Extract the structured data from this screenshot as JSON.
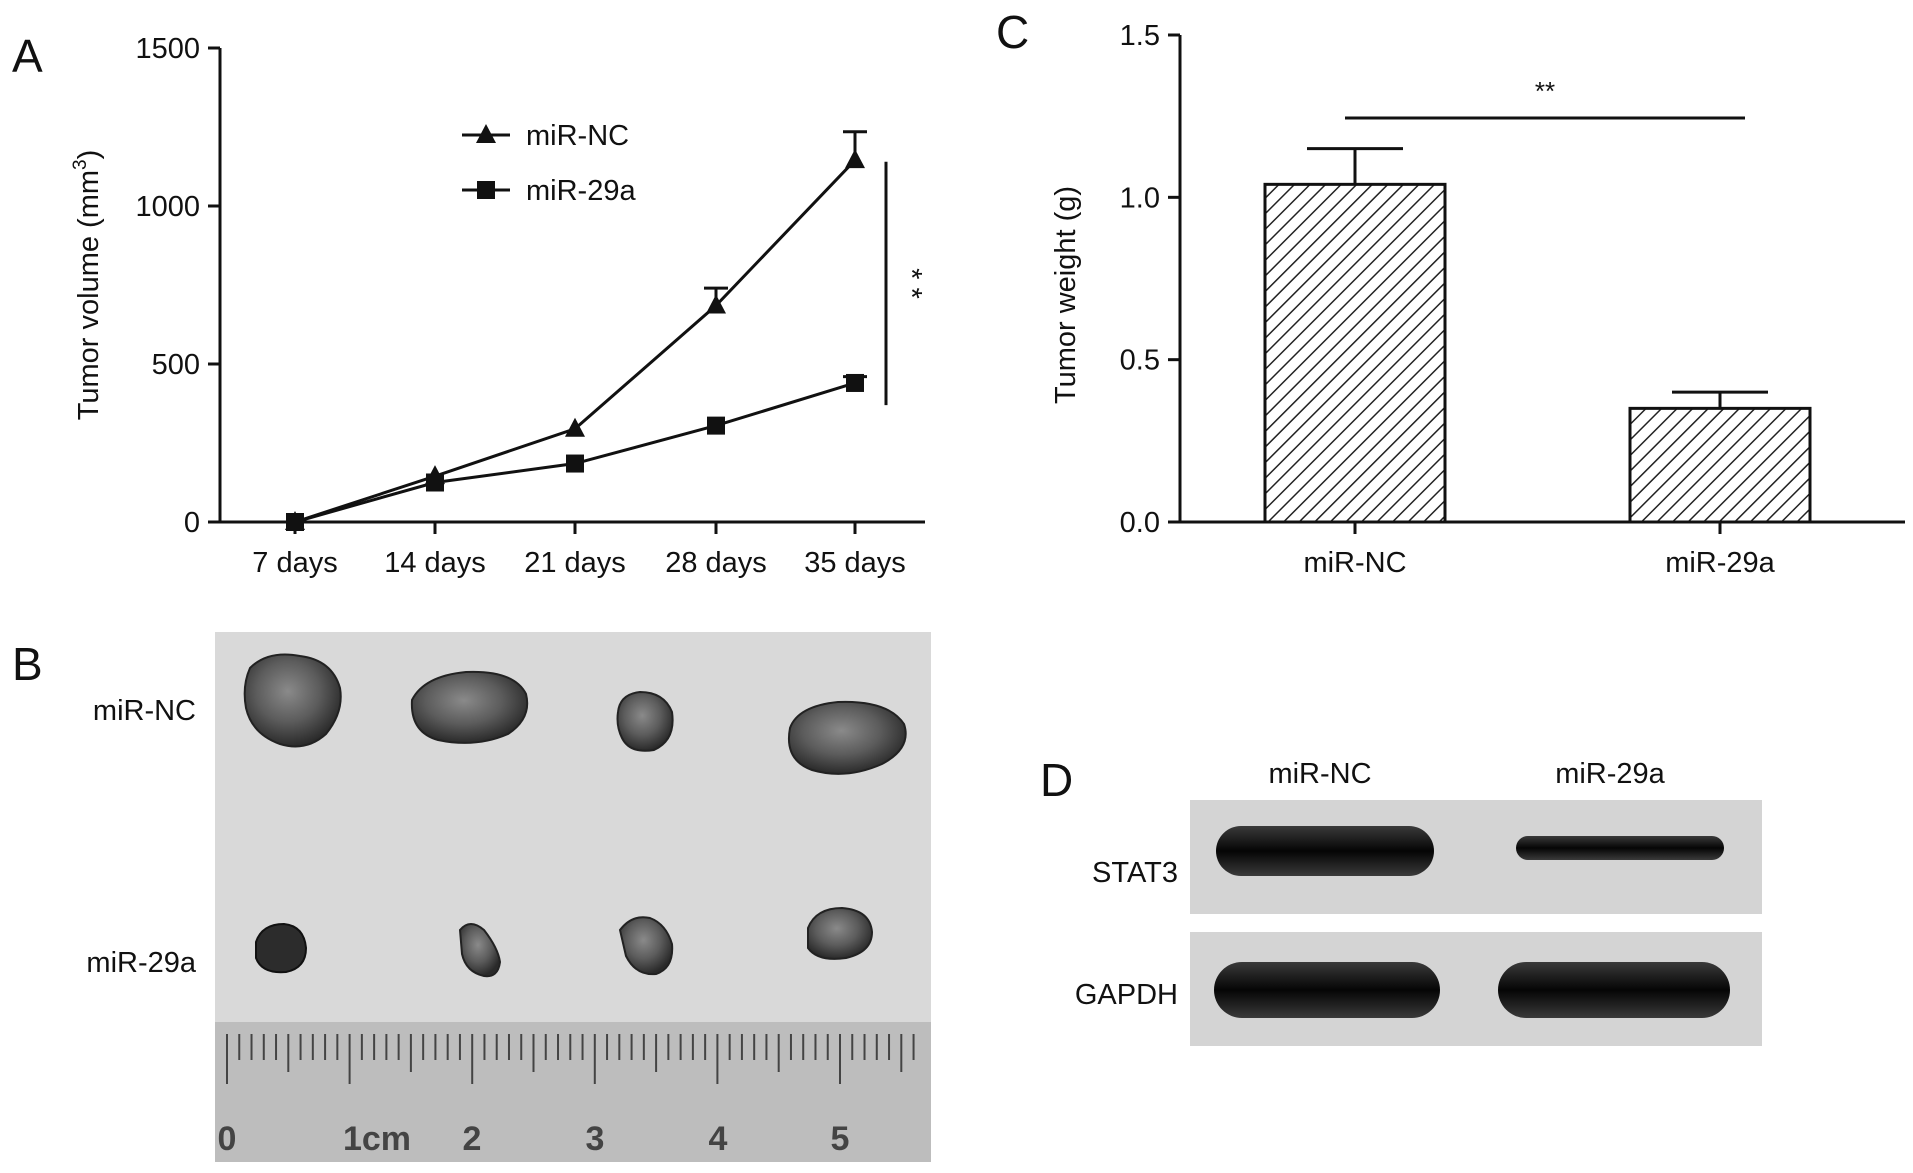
{
  "panels": {
    "A": "A",
    "B": "B",
    "C": "C",
    "D": "D"
  },
  "chart_data": [
    {
      "panel": "A",
      "type": "line",
      "ylabel_main": "Tumor volume (mm",
      "ylabel_sup": "3",
      "ylabel_end": ")",
      "xlabel": "",
      "categories": [
        "7 days",
        "14 days",
        "21 days",
        "28 days",
        "35 days"
      ],
      "ylim": [
        0,
        1500
      ],
      "yticks": [
        "0",
        "500",
        "1000",
        "1500"
      ],
      "ytick_values": [
        0,
        500,
        1000,
        1500
      ],
      "legend_position": "top-center",
      "grid": false,
      "series": [
        {
          "name": "miR-NC",
          "marker": "triangle",
          "values": [
            0,
            145,
            295,
            685,
            1145
          ],
          "errors": [
            0,
            0,
            0,
            55,
            90
          ]
        },
        {
          "name": "miR-29a",
          "marker": "square",
          "values": [
            0,
            125,
            185,
            305,
            440
          ],
          "errors": [
            0,
            0,
            0,
            0,
            20
          ]
        }
      ],
      "significance": "* *"
    },
    {
      "panel": "C",
      "type": "bar",
      "ylabel": "Tumor weight (g)",
      "xlabel": "",
      "categories": [
        "miR-NC",
        "miR-29a"
      ],
      "values": [
        1.04,
        0.35
      ],
      "errors": [
        0.11,
        0.05
      ],
      "ylim": [
        0,
        1.5
      ],
      "yticks": [
        "0.0",
        "0.5",
        "1.0",
        "1.5"
      ],
      "ytick_values": [
        0,
        0.5,
        1.0,
        1.5
      ],
      "fill": "hatched",
      "grid": false,
      "significance": "**"
    }
  ],
  "photo": {
    "row_labels": [
      "miR-NC",
      "miR-29a"
    ],
    "ruler_labels": [
      "0",
      "1cm",
      "2",
      "3",
      "4",
      "5"
    ]
  },
  "blot": {
    "column_labels": [
      "miR-NC",
      "miR-29a"
    ],
    "row_labels": [
      "STAT3",
      "GAPDH"
    ]
  }
}
